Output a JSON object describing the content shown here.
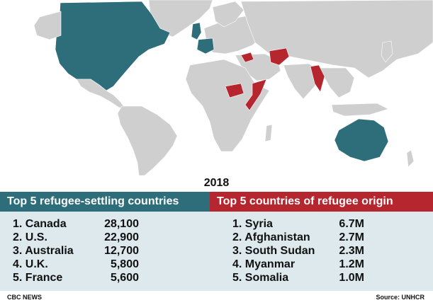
{
  "colors": {
    "settling": "#2e6e7b",
    "origin": "#b5262f",
    "land": "#cfcfcf",
    "table_bg": "#dde9ec"
  },
  "year": "2018",
  "left_table": {
    "title": "Top 5 refugee-settling countries",
    "rows": [
      {
        "name": "1. Canada",
        "value": "28,100"
      },
      {
        "name": "2. U.S.",
        "value": "22,900"
      },
      {
        "name": "3. Australia",
        "value": "12,700"
      },
      {
        "name": "4. U.K.",
        "value": "5,800"
      },
      {
        "name": "5. France",
        "value": "5,600"
      }
    ]
  },
  "right_table": {
    "title": "Top 5 countries of refugee origin",
    "rows": [
      {
        "name": "1. Syria",
        "value": "6.7M"
      },
      {
        "name": "2. Afghanistan",
        "value": "2.7M"
      },
      {
        "name": "3. South Sudan",
        "value": "2.3M"
      },
      {
        "name": "4. Myanmar",
        "value": "1.2M"
      },
      {
        "name": "5. Somalia",
        "value": "1.0M"
      }
    ]
  },
  "footer": {
    "credit": "CBC NEWS",
    "source": "Source: UNHCR"
  }
}
